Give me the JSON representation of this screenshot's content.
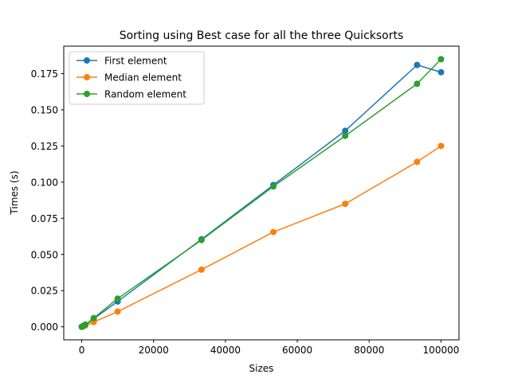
{
  "chart_data": {
    "type": "line",
    "title": "Sorting using Best case for all the three Quicksorts",
    "xlabel": "Sizes",
    "ylabel": "Times (s)",
    "xlim": [
      -5000,
      105000
    ],
    "ylim": [
      -0.009,
      0.194
    ],
    "xticks": [
      0,
      20000,
      40000,
      60000,
      80000,
      100000
    ],
    "xtick_labels": [
      "0",
      "20000",
      "40000",
      "60000",
      "80000",
      "100000"
    ],
    "yticks": [
      0.0,
      0.025,
      0.05,
      0.075,
      0.1,
      0.125,
      0.15,
      0.175
    ],
    "ytick_labels": [
      "0.000",
      "0.025",
      "0.050",
      "0.075",
      "0.100",
      "0.125",
      "0.150",
      "0.175"
    ],
    "grid": false,
    "legend_position": "top-left",
    "x": [
      10,
      100,
      333,
      1000,
      3333,
      10000,
      33333,
      53333,
      73333,
      93333,
      100000
    ],
    "series": [
      {
        "name": "First element",
        "color": "#1f77b4",
        "values": [
          0.0,
          0.0,
          0.0004,
          0.0013,
          0.0055,
          0.0175,
          0.0605,
          0.098,
          0.1355,
          0.181,
          0.176
        ]
      },
      {
        "name": "Median element",
        "color": "#ff7f0e",
        "values": [
          0.0,
          0.0,
          0.0003,
          0.0009,
          0.0033,
          0.0105,
          0.0395,
          0.0655,
          0.085,
          0.114,
          0.125
        ]
      },
      {
        "name": "Random element",
        "color": "#2ca02c",
        "values": [
          0.0,
          0.0,
          0.0004,
          0.0015,
          0.006,
          0.0195,
          0.06,
          0.097,
          0.132,
          0.168,
          0.185
        ]
      }
    ]
  }
}
